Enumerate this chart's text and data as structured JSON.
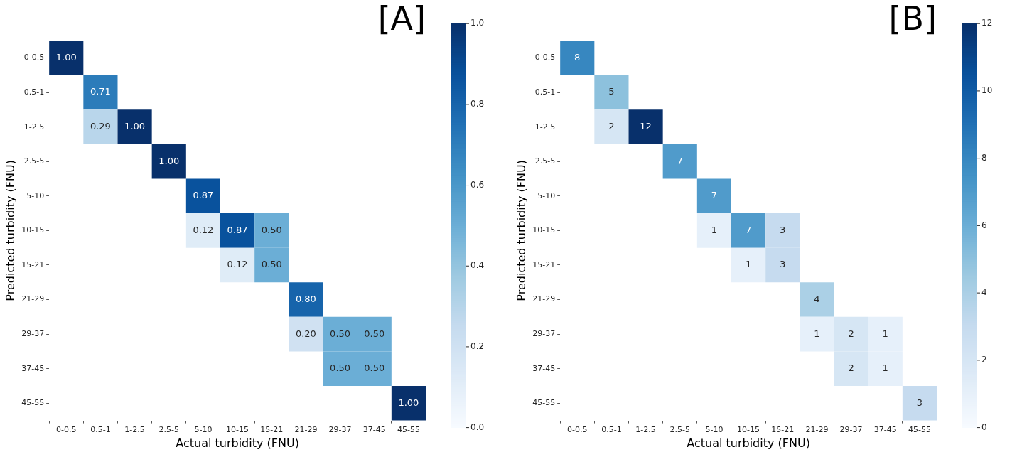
{
  "chart_data": [
    {
      "type": "heatmap",
      "title": "[A]",
      "xlabel": "Actual turbidity (FNU)",
      "ylabel": "Predicted turbidity (FNU)",
      "categories": [
        "0-0.5",
        "0.5-1",
        "1-2.5",
        "2.5-5",
        "5-10",
        "10-15",
        "15-21",
        "21-29",
        "29-37",
        "37-45",
        "45-55"
      ],
      "y_categories": [
        "0-0.5",
        "0.5-1",
        "1-2.5",
        "2.5-5",
        "5-10",
        "10-15",
        "15-21",
        "21-29",
        "29-37",
        "37-45",
        "45-55"
      ],
      "cells": [
        [
          1.0,
          null,
          null,
          null,
          null,
          null,
          null,
          null,
          null,
          null,
          null
        ],
        [
          null,
          0.71,
          null,
          null,
          null,
          null,
          null,
          null,
          null,
          null,
          null
        ],
        [
          null,
          0.29,
          1.0,
          null,
          null,
          null,
          null,
          null,
          null,
          null,
          null
        ],
        [
          null,
          null,
          null,
          1.0,
          null,
          null,
          null,
          null,
          null,
          null,
          null
        ],
        [
          null,
          null,
          null,
          null,
          0.87,
          null,
          null,
          null,
          null,
          null,
          null
        ],
        [
          null,
          null,
          null,
          null,
          0.12,
          0.87,
          0.5,
          null,
          null,
          null,
          null
        ],
        [
          null,
          null,
          null,
          null,
          null,
          0.12,
          0.5,
          null,
          null,
          null,
          null
        ],
        [
          null,
          null,
          null,
          null,
          null,
          null,
          null,
          0.8,
          null,
          null,
          null
        ],
        [
          null,
          null,
          null,
          null,
          null,
          null,
          null,
          0.2,
          0.5,
          0.5,
          null
        ],
        [
          null,
          null,
          null,
          null,
          null,
          null,
          null,
          null,
          0.5,
          0.5,
          null
        ],
        [
          null,
          null,
          null,
          null,
          null,
          null,
          null,
          null,
          null,
          null,
          1.0
        ]
      ],
      "cell_labels": [
        [
          "1.00",
          null,
          null,
          null,
          null,
          null,
          null,
          null,
          null,
          null,
          null
        ],
        [
          null,
          "0.71",
          null,
          null,
          null,
          null,
          null,
          null,
          null,
          null,
          null
        ],
        [
          null,
          "0.29",
          "1.00",
          null,
          null,
          null,
          null,
          null,
          null,
          null,
          null
        ],
        [
          null,
          null,
          null,
          "1.00",
          null,
          null,
          null,
          null,
          null,
          null,
          null
        ],
        [
          null,
          null,
          null,
          null,
          "0.87",
          null,
          null,
          null,
          null,
          null,
          null
        ],
        [
          null,
          null,
          null,
          null,
          "0.12",
          "0.87",
          "0.50",
          null,
          null,
          null,
          null
        ],
        [
          null,
          null,
          null,
          null,
          null,
          "0.12",
          "0.50",
          null,
          null,
          null,
          null
        ],
        [
          null,
          null,
          null,
          null,
          null,
          null,
          null,
          "0.80",
          null,
          null,
          null
        ],
        [
          null,
          null,
          null,
          null,
          null,
          null,
          null,
          "0.20",
          "0.50",
          "0.50",
          null
        ],
        [
          null,
          null,
          null,
          null,
          null,
          null,
          null,
          null,
          "0.50",
          "0.50",
          null
        ],
        [
          null,
          null,
          null,
          null,
          null,
          null,
          null,
          null,
          null,
          null,
          "1.00"
        ]
      ],
      "data_labels": true,
      "clim": [
        0,
        1
      ],
      "cticks": [
        {
          "value": 0,
          "label": "0.0"
        },
        {
          "value": 0.2,
          "label": "0.2"
        },
        {
          "value": 0.4,
          "label": "0.4"
        },
        {
          "value": 0.6,
          "label": "0.6"
        },
        {
          "value": 0.8,
          "label": "0.8"
        },
        {
          "value": 1,
          "label": "1.0"
        }
      ]
    },
    {
      "type": "heatmap",
      "title": "[B]",
      "xlabel": "Actual turbidity (FNU)",
      "ylabel": "Predicted turbidity (FNU)",
      "categories": [
        "0-0.5",
        "0.5-1",
        "1-2.5",
        "2.5-5",
        "5-10",
        "10-15",
        "15-21",
        "21-29",
        "29-37",
        "37-45",
        "45-55"
      ],
      "y_categories": [
        "0-0.5",
        "0.5-1",
        "1-2.5",
        "2.5-5",
        "5-10",
        "10-15",
        "15-21",
        "21-29",
        "29-37",
        "37-45",
        "45-55"
      ],
      "cells": [
        [
          8,
          null,
          null,
          null,
          null,
          null,
          null,
          null,
          null,
          null,
          null
        ],
        [
          null,
          5,
          null,
          null,
          null,
          null,
          null,
          null,
          null,
          null,
          null
        ],
        [
          null,
          2,
          12,
          null,
          null,
          null,
          null,
          null,
          null,
          null,
          null
        ],
        [
          null,
          null,
          null,
          7,
          null,
          null,
          null,
          null,
          null,
          null,
          null
        ],
        [
          null,
          null,
          null,
          null,
          7,
          null,
          null,
          null,
          null,
          null,
          null
        ],
        [
          null,
          null,
          null,
          null,
          1,
          7,
          3,
          null,
          null,
          null,
          null
        ],
        [
          null,
          null,
          null,
          null,
          null,
          1,
          3,
          null,
          null,
          null,
          null
        ],
        [
          null,
          null,
          null,
          null,
          null,
          null,
          null,
          4,
          null,
          null,
          null
        ],
        [
          null,
          null,
          null,
          null,
          null,
          null,
          null,
          1,
          2,
          1,
          null
        ],
        [
          null,
          null,
          null,
          null,
          null,
          null,
          null,
          null,
          2,
          1,
          null
        ],
        [
          null,
          null,
          null,
          null,
          null,
          null,
          null,
          null,
          null,
          null,
          3
        ]
      ],
      "data_labels": true,
      "clim": [
        0,
        12
      ],
      "cticks": [
        0,
        2,
        4,
        6,
        8,
        10,
        12
      ]
    }
  ]
}
